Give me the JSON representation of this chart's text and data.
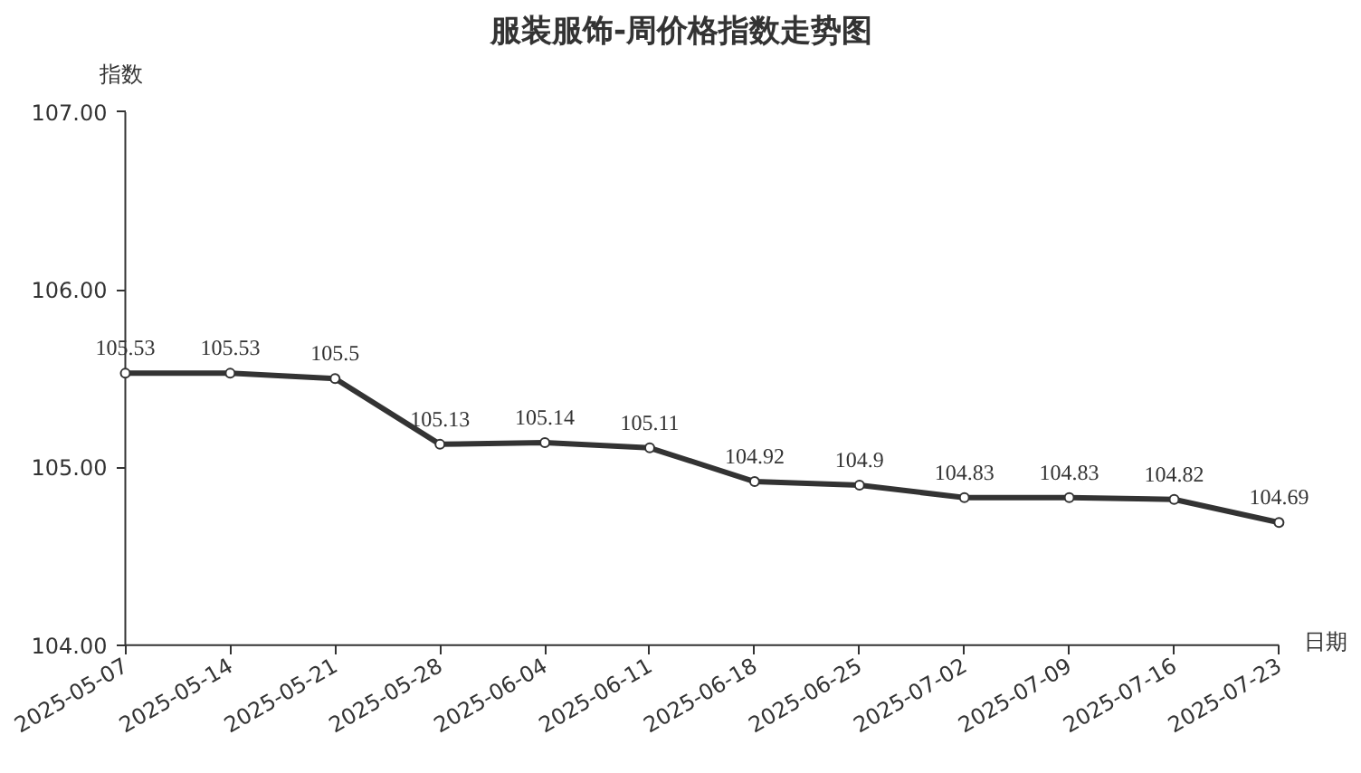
{
  "chart_data": {
    "type": "line",
    "title": "服装服饰-周价格指数走势图",
    "xlabel": "日期",
    "ylabel": "指数",
    "categories": [
      "2025-05-07",
      "2025-05-14",
      "2025-05-21",
      "2025-05-28",
      "2025-06-04",
      "2025-06-11",
      "2025-06-18",
      "2025-06-25",
      "2025-07-02",
      "2025-07-09",
      "2025-07-16",
      "2025-07-23"
    ],
    "series": [
      {
        "color": "#333333",
        "values": [
          105.53,
          105.53,
          105.5,
          105.13,
          105.14,
          105.11,
          104.92,
          104.9,
          104.83,
          104.83,
          104.82,
          104.69
        ]
      }
    ],
    "ylim": [
      104,
      107
    ],
    "yticks": [
      {
        "value": 104,
        "label": "104.00"
      },
      {
        "value": 105,
        "label": "105.00"
      },
      {
        "value": 106,
        "label": "106.00"
      },
      {
        "value": 107,
        "label": "107.00"
      }
    ],
    "data_labels": true,
    "marker": "circle",
    "line_style": "solid",
    "grid": false,
    "legend": false
  }
}
